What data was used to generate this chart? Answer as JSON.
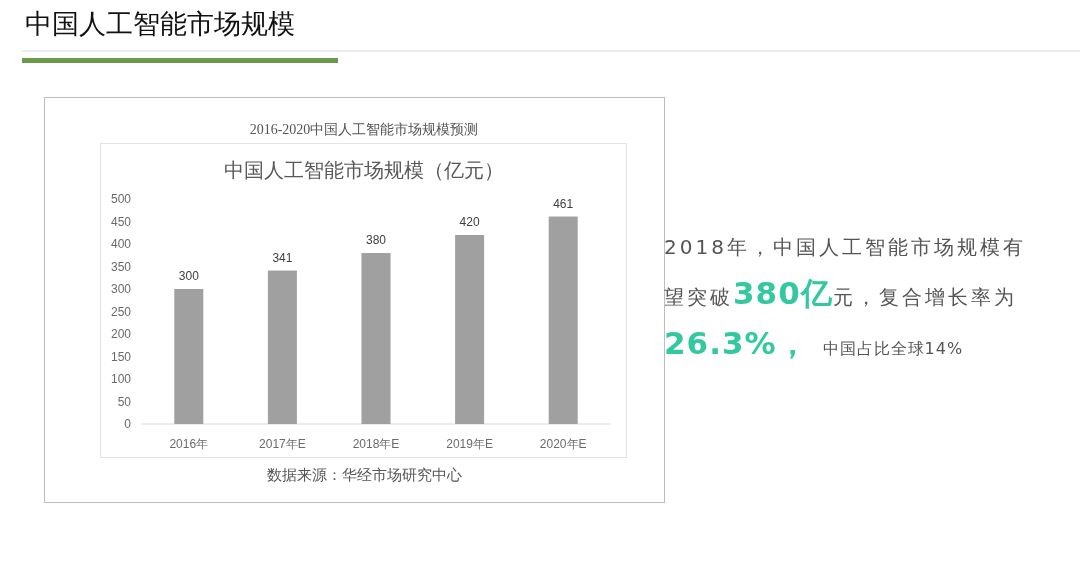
{
  "chart_data": {
    "type": "bar",
    "title": "中国人工智能市场规模（亿元）",
    "categories": [
      "2016年",
      "2017年E",
      "2018年E",
      "2019年E",
      "2020年E"
    ],
    "values": [
      300,
      341,
      380,
      420,
      461
    ],
    "color": "#a0a0a0",
    "ylim": [
      0,
      500
    ],
    "yticks": [
      0,
      50,
      100,
      150,
      200,
      250,
      300,
      350,
      400,
      450,
      500
    ],
    "data_labels": true,
    "annotations": [
      "中国人工智能市场规模",
      "2016-2020中国人工智能市场规模预测",
      "数据来源：华经市场研究中心",
      "2018年，中国人工智能市场规模有望突破",
      "380亿",
      "元，复合增长率为",
      "26.3%，",
      "中国占比全球14%"
    ]
  }
}
